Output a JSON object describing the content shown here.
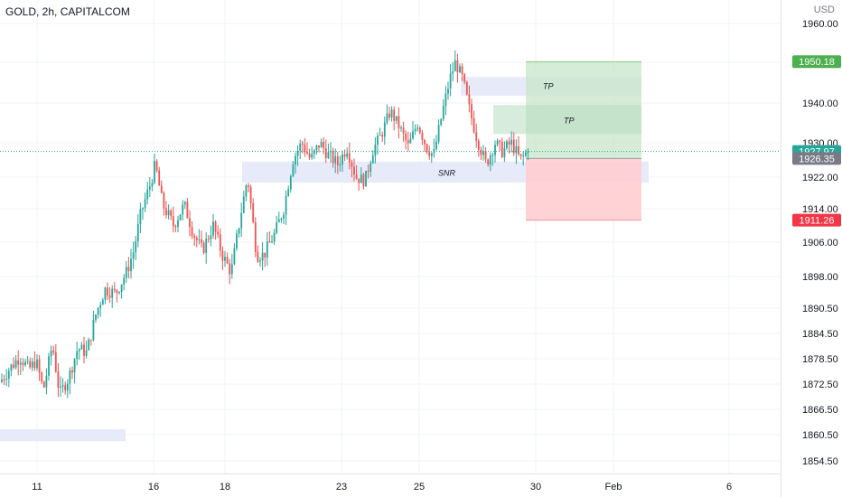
{
  "header": {
    "title": "GOLD, 2h, CAPITALCOM",
    "currency": "USD"
  },
  "chart_data": {
    "type": "candlestick",
    "symbol": "GOLD",
    "interval": "2h",
    "source": "CAPITALCOM",
    "y_axis_ticks": [
      "1960.00",
      "1950.00",
      "1940.00",
      "1930.00",
      "1922.00",
      "1914.00",
      "1906.00",
      "1898.00",
      "1890.50",
      "1884.50",
      "1878.50",
      "1872.50",
      "1866.50",
      "1860.50",
      "1854.50"
    ],
    "y_axis_values": [
      1960.0,
      1950.0,
      1940.0,
      1930.0,
      1922.0,
      1914.0,
      1906.0,
      1898.0,
      1890.5,
      1884.5,
      1878.5,
      1872.5,
      1866.5,
      1860.5,
      1854.5
    ],
    "x_axis_ticks": [
      "11",
      "16",
      "18",
      "23",
      "25",
      "30",
      "Feb",
      "6"
    ],
    "price_labels": [
      {
        "text": "1950.18",
        "value": 1950.18,
        "color": "#4caf50"
      },
      {
        "text": "1927.97",
        "value": 1927.97,
        "color": "#26a69a"
      },
      {
        "text": "1926.35",
        "value": 1926.35,
        "color": "#787b86"
      },
      {
        "text": "1911.26",
        "value": 1911.26,
        "color": "#f23645"
      }
    ],
    "annotations": [
      "TP",
      "TP",
      "SNR"
    ],
    "zones": [
      {
        "label": "SNR",
        "top": 1925.5,
        "bottom": 1921.0
      },
      {
        "label": "",
        "top": 1861.5,
        "bottom": 1859.5
      },
      {
        "label": "",
        "top": 1946.0,
        "bottom": 1942.0
      }
    ],
    "position": {
      "entry": 1926.35,
      "take_profit": 1950.18,
      "stop_loss": 1911.26
    },
    "colors": {
      "up": "#26a69a",
      "down": "#ef5350",
      "profit_zone": "#c8e6c9",
      "loss_zone": "#ffcdd2",
      "snr_zone": "#e3e8f8"
    }
  }
}
